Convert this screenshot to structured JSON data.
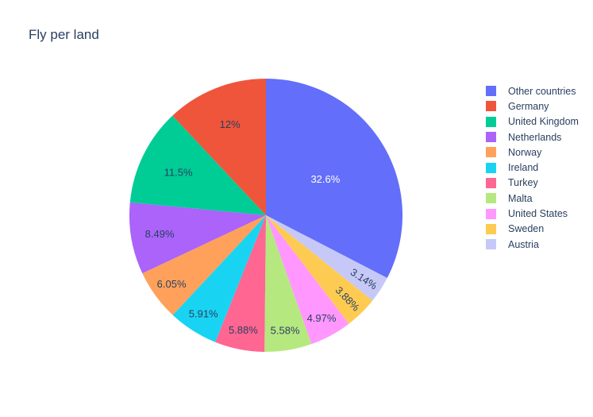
{
  "title": "Fly per land",
  "colors": {
    "background": "#ffffff",
    "title_text": "#2a3f5f",
    "legend_text": "#2a3f5f"
  },
  "chart_data": {
    "type": "pie",
    "title": "Fly per land",
    "legend_position": "right",
    "rotation_start_deg": 0,
    "first_slice_direction": "clockwise-from-top",
    "slices": [
      {
        "label": "Other countries",
        "value": 32.6,
        "pct_label": "32.6%",
        "color": "#636EFA",
        "label_color": "#ffffff"
      },
      {
        "label": "Germany",
        "value": 12.0,
        "pct_label": "12%",
        "color": "#EF553B",
        "label_color": "#2a3f5f"
      },
      {
        "label": "United Kingdom",
        "value": 11.5,
        "pct_label": "11.5%",
        "color": "#00CC96",
        "label_color": "#2a3f5f"
      },
      {
        "label": "Netherlands",
        "value": 8.49,
        "pct_label": "8.49%",
        "color": "#AB63FA",
        "label_color": "#2a3f5f"
      },
      {
        "label": "Norway",
        "value": 6.05,
        "pct_label": "6.05%",
        "color": "#FFA15A",
        "label_color": "#2a3f5f"
      },
      {
        "label": "Ireland",
        "value": 5.91,
        "pct_label": "5.91%",
        "color": "#19D3F3",
        "label_color": "#2a3f5f"
      },
      {
        "label": "Turkey",
        "value": 5.88,
        "pct_label": "5.88%",
        "color": "#FF6692",
        "label_color": "#2a3f5f"
      },
      {
        "label": "Malta",
        "value": 5.58,
        "pct_label": "5.58%",
        "color": "#B6E880",
        "label_color": "#2a3f5f"
      },
      {
        "label": "United States",
        "value": 4.97,
        "pct_label": "4.97%",
        "color": "#FF97FF",
        "label_color": "#2a3f5f"
      },
      {
        "label": "Sweden",
        "value": 3.88,
        "pct_label": "3.88%",
        "color": "#FECB52",
        "label_color": "#2a3f5f"
      },
      {
        "label": "Austria",
        "value": 3.14,
        "pct_label": "3.14%",
        "color": "#C6C9F8",
        "label_color": "#2a3f5f"
      }
    ]
  }
}
